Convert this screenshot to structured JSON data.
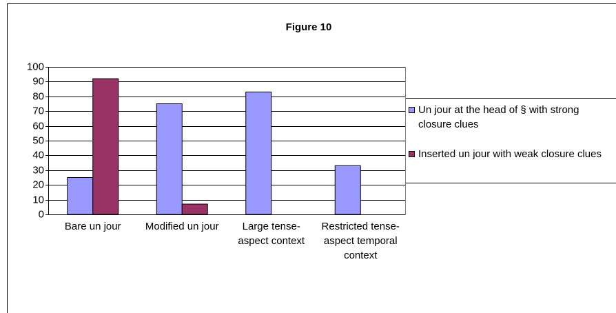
{
  "chart_data": {
    "type": "bar",
    "title": "Figure 10",
    "categories": [
      "Bare un jour",
      "Modified un jour",
      "Large tense-aspect context",
      "Restricted tense-aspect temporal context"
    ],
    "series": [
      {
        "name": "Un jour at the head of § with strong closure clues",
        "color": "#9999ff",
        "values": [
          25,
          75,
          83,
          33
        ]
      },
      {
        "name": "Inserted un jour with weak closure clues",
        "color": "#993366",
        "values": [
          92,
          7,
          0,
          0
        ]
      }
    ],
    "ylim": [
      0,
      100
    ],
    "yticks": [
      0,
      10,
      20,
      30,
      40,
      50,
      60,
      70,
      80,
      90,
      100
    ],
    "grid": true,
    "legend": "right"
  }
}
